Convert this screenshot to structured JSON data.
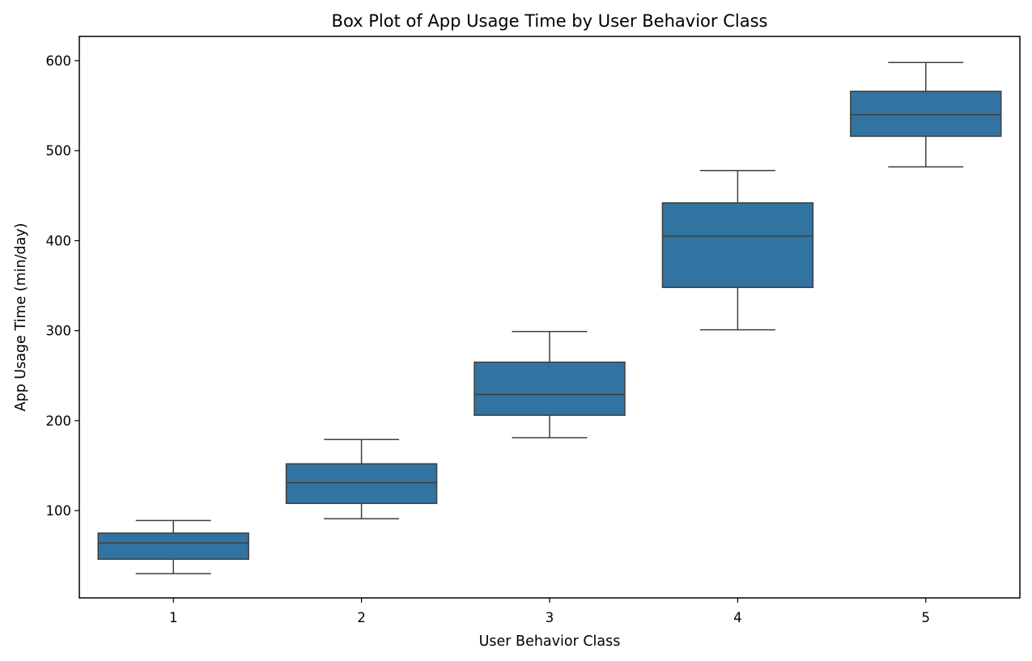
{
  "chart_data": {
    "type": "box",
    "title": "Box Plot of App Usage Time by User Behavior Class",
    "xlabel": "User Behavior Class",
    "ylabel": "App Usage Time (min/day)",
    "categories": [
      "1",
      "2",
      "3",
      "4",
      "5"
    ],
    "ylim": [
      3,
      627
    ],
    "yticks": [
      100,
      200,
      300,
      400,
      500,
      600
    ],
    "grid": false,
    "boxes": [
      {
        "category": "1",
        "whisker_low": 30,
        "q1": 46,
        "median": 64,
        "q3": 75,
        "whisker_high": 89
      },
      {
        "category": "2",
        "whisker_low": 91,
        "q1": 108,
        "median": 131,
        "q3": 152,
        "whisker_high": 179
      },
      {
        "category": "3",
        "whisker_low": 181,
        "q1": 206,
        "median": 229,
        "q3": 265,
        "whisker_high": 299
      },
      {
        "category": "4",
        "whisker_low": 301,
        "q1": 348,
        "median": 405,
        "q3": 442,
        "whisker_high": 478
      },
      {
        "category": "5",
        "whisker_low": 482,
        "q1": 516,
        "median": 540,
        "q3": 566,
        "whisker_high": 598
      }
    ],
    "colors": {
      "box_fill": "#3274a1",
      "box_edge": "#3f3f3f",
      "axes": "#000000"
    }
  }
}
